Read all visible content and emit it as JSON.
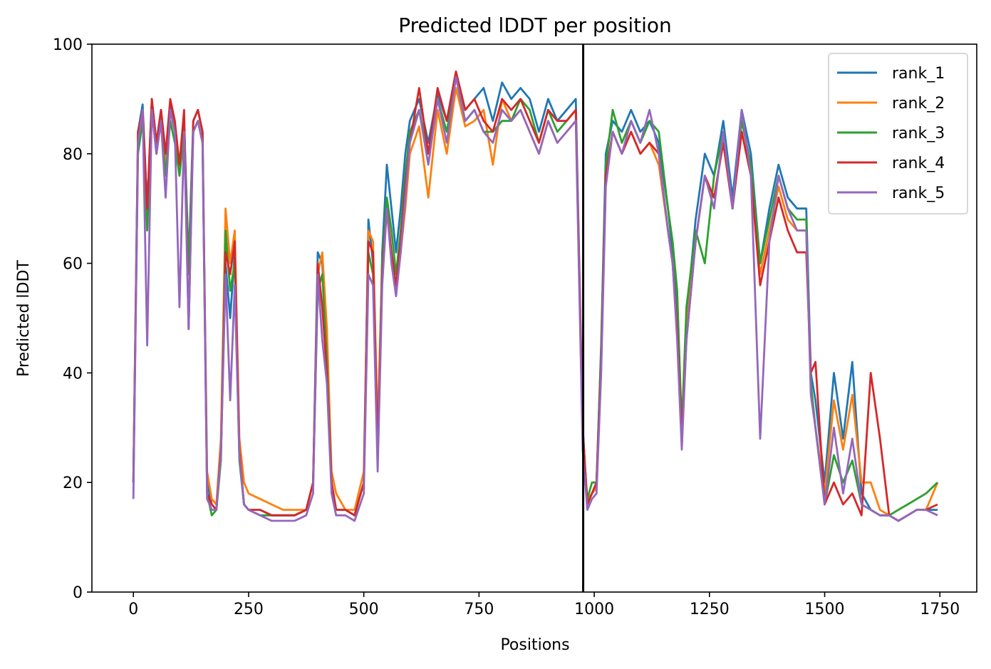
{
  "chart_data": {
    "type": "line",
    "title": "Predicted lDDT per position",
    "xlabel": "Positions",
    "ylabel": "Predicted lDDT",
    "xlim": [
      -90,
      1830
    ],
    "ylim": [
      0,
      100
    ],
    "xticks": [
      0,
      250,
      500,
      750,
      1000,
      1250,
      1500,
      1750
    ],
    "yticks": [
      0,
      20,
      40,
      60,
      80,
      100
    ],
    "grid": false,
    "legend_position": "top-right",
    "vline": 976,
    "series": [
      {
        "name": "rank_1",
        "color": "#1f77b4",
        "x": [
          0,
          10,
          20,
          30,
          40,
          50,
          60,
          70,
          80,
          90,
          100,
          110,
          120,
          130,
          140,
          150,
          160,
          170,
          180,
          190,
          200,
          210,
          220,
          230,
          240,
          250,
          275,
          300,
          325,
          350,
          375,
          390,
          400,
          410,
          420,
          430,
          440,
          460,
          480,
          500,
          510,
          520,
          530,
          540,
          550,
          560,
          570,
          580,
          590,
          600,
          620,
          640,
          660,
          680,
          700,
          720,
          740,
          760,
          780,
          800,
          820,
          840,
          860,
          880,
          900,
          920,
          940,
          960,
          975,
          985,
          995,
          1005,
          1015,
          1025,
          1040,
          1060,
          1080,
          1100,
          1120,
          1140,
          1160,
          1170,
          1180,
          1190,
          1200,
          1220,
          1240,
          1260,
          1280,
          1300,
          1320,
          1340,
          1360,
          1380,
          1400,
          1420,
          1440,
          1460,
          1470,
          1480,
          1500,
          1520,
          1540,
          1560,
          1580,
          1600,
          1620,
          1640,
          1660,
          1680,
          1700,
          1720,
          1745
        ],
        "y": [
          20,
          84,
          89,
          70,
          90,
          82,
          88,
          80,
          89,
          85,
          78,
          86,
          60,
          86,
          88,
          84,
          20,
          16,
          15,
          25,
          60,
          50,
          62,
          25,
          16,
          15,
          15,
          14,
          14,
          14,
          15,
          20,
          62,
          60,
          45,
          20,
          15,
          15,
          14,
          20,
          68,
          60,
          25,
          62,
          78,
          70,
          62,
          70,
          80,
          86,
          90,
          82,
          91,
          86,
          95,
          88,
          90,
          92,
          86,
          93,
          90,
          92,
          90,
          84,
          90,
          86,
          88,
          90,
          30,
          16,
          18,
          20,
          45,
          80,
          86,
          84,
          88,
          84,
          86,
          82,
          70,
          62,
          50,
          30,
          50,
          68,
          80,
          76,
          86,
          72,
          88,
          80,
          60,
          70,
          78,
          72,
          70,
          70,
          40,
          35,
          20,
          40,
          28,
          42,
          18,
          15,
          14,
          14,
          13,
          14,
          15,
          15,
          15
        ]
      },
      {
        "name": "rank_2",
        "color": "#ff7f0e",
        "x": [
          0,
          10,
          20,
          30,
          40,
          50,
          60,
          70,
          80,
          90,
          100,
          110,
          120,
          130,
          140,
          150,
          160,
          170,
          180,
          190,
          200,
          210,
          220,
          230,
          240,
          250,
          275,
          300,
          325,
          350,
          375,
          390,
          400,
          410,
          420,
          430,
          440,
          460,
          480,
          500,
          510,
          520,
          530,
          540,
          550,
          560,
          570,
          580,
          590,
          600,
          620,
          640,
          660,
          680,
          700,
          720,
          740,
          760,
          780,
          800,
          820,
          840,
          860,
          880,
          900,
          920,
          940,
          960,
          975,
          985,
          995,
          1005,
          1015,
          1025,
          1040,
          1060,
          1080,
          1100,
          1120,
          1140,
          1160,
          1170,
          1180,
          1190,
          1200,
          1220,
          1240,
          1260,
          1280,
          1300,
          1320,
          1340,
          1360,
          1380,
          1400,
          1420,
          1440,
          1460,
          1470,
          1480,
          1500,
          1520,
          1540,
          1560,
          1580,
          1600,
          1620,
          1640,
          1660,
          1680,
          1700,
          1720,
          1745
        ],
        "y": [
          20,
          82,
          88,
          68,
          88,
          80,
          87,
          78,
          88,
          84,
          76,
          84,
          58,
          84,
          86,
          82,
          22,
          17,
          16,
          28,
          70,
          60,
          66,
          28,
          20,
          18,
          17,
          16,
          15,
          15,
          15,
          20,
          58,
          62,
          48,
          22,
          18,
          15,
          15,
          22,
          66,
          64,
          30,
          60,
          70,
          62,
          55,
          62,
          70,
          80,
          85,
          72,
          88,
          80,
          92,
          85,
          86,
          88,
          78,
          90,
          86,
          88,
          84,
          80,
          86,
          82,
          84,
          86,
          28,
          17,
          18,
          19,
          42,
          76,
          84,
          80,
          84,
          80,
          82,
          78,
          66,
          60,
          48,
          28,
          48,
          64,
          76,
          72,
          82,
          70,
          84,
          76,
          58,
          66,
          74,
          68,
          66,
          66,
          38,
          30,
          18,
          35,
          26,
          36,
          20,
          20,
          15,
          14,
          13,
          14,
          15,
          15,
          20
        ]
      },
      {
        "name": "rank_3",
        "color": "#2ca02c",
        "x": [
          0,
          10,
          20,
          30,
          40,
          50,
          60,
          70,
          80,
          90,
          100,
          110,
          120,
          130,
          140,
          150,
          160,
          170,
          180,
          190,
          200,
          210,
          220,
          230,
          240,
          250,
          275,
          300,
          325,
          350,
          375,
          390,
          400,
          410,
          420,
          430,
          440,
          460,
          480,
          500,
          510,
          520,
          530,
          540,
          550,
          560,
          570,
          580,
          590,
          600,
          620,
          640,
          660,
          680,
          700,
          720,
          740,
          760,
          780,
          800,
          820,
          840,
          860,
          880,
          900,
          920,
          940,
          960,
          975,
          985,
          995,
          1005,
          1015,
          1025,
          1040,
          1060,
          1080,
          1100,
          1120,
          1140,
          1160,
          1170,
          1180,
          1190,
          1200,
          1220,
          1240,
          1260,
          1280,
          1300,
          1320,
          1340,
          1360,
          1380,
          1400,
          1420,
          1440,
          1460,
          1470,
          1480,
          1500,
          1520,
          1540,
          1560,
          1580,
          1600,
          1620,
          1640,
          1660,
          1680,
          1700,
          1720,
          1745
        ],
        "y": [
          20,
          80,
          86,
          66,
          88,
          80,
          86,
          76,
          86,
          82,
          76,
          84,
          58,
          84,
          86,
          82,
          18,
          14,
          15,
          24,
          66,
          55,
          60,
          24,
          16,
          15,
          14,
          14,
          14,
          14,
          15,
          20,
          55,
          58,
          42,
          20,
          15,
          15,
          14,
          20,
          62,
          58,
          24,
          60,
          72,
          66,
          58,
          66,
          76,
          84,
          88,
          80,
          90,
          84,
          94,
          86,
          88,
          84,
          84,
          86,
          86,
          90,
          88,
          82,
          88,
          84,
          86,
          88,
          28,
          17,
          20,
          20,
          44,
          78,
          88,
          82,
          86,
          82,
          86,
          84,
          70,
          64,
          55,
          30,
          52,
          66,
          60,
          76,
          84,
          70,
          86,
          78,
          60,
          68,
          76,
          70,
          68,
          68,
          38,
          30,
          16,
          25,
          20,
          24,
          16,
          15,
          14,
          14,
          15,
          16,
          17,
          18,
          20
        ]
      },
      {
        "name": "rank_4",
        "color": "#d62728",
        "x": [
          0,
          10,
          20,
          30,
          40,
          50,
          60,
          70,
          80,
          90,
          100,
          110,
          120,
          130,
          140,
          150,
          160,
          170,
          180,
          190,
          200,
          210,
          220,
          230,
          240,
          250,
          275,
          300,
          325,
          350,
          375,
          390,
          400,
          410,
          420,
          430,
          440,
          460,
          480,
          500,
          510,
          520,
          530,
          540,
          550,
          560,
          570,
          580,
          590,
          600,
          620,
          640,
          660,
          680,
          700,
          720,
          740,
          760,
          780,
          800,
          820,
          840,
          860,
          880,
          900,
          920,
          940,
          960,
          975,
          985,
          995,
          1005,
          1015,
          1025,
          1040,
          1060,
          1080,
          1100,
          1120,
          1140,
          1160,
          1170,
          1180,
          1190,
          1200,
          1220,
          1240,
          1260,
          1280,
          1300,
          1320,
          1340,
          1360,
          1380,
          1400,
          1420,
          1440,
          1460,
          1470,
          1480,
          1500,
          1520,
          1540,
          1560,
          1580,
          1600,
          1620,
          1640,
          1660,
          1680,
          1700,
          1720,
          1745
        ],
        "y": [
          20,
          84,
          88,
          70,
          90,
          82,
          88,
          80,
          90,
          86,
          78,
          88,
          48,
          86,
          88,
          84,
          18,
          16,
          15,
          26,
          62,
          58,
          64,
          26,
          16,
          15,
          15,
          14,
          14,
          14,
          15,
          20,
          60,
          52,
          40,
          20,
          15,
          15,
          14,
          20,
          64,
          62,
          26,
          58,
          70,
          62,
          56,
          64,
          74,
          82,
          92,
          80,
          92,
          86,
          95,
          88,
          90,
          86,
          84,
          90,
          88,
          90,
          86,
          82,
          88,
          86,
          86,
          88,
          30,
          16,
          18,
          20,
          42,
          76,
          84,
          80,
          84,
          80,
          82,
          80,
          66,
          60,
          48,
          28,
          46,
          64,
          76,
          72,
          82,
          70,
          84,
          76,
          56,
          64,
          72,
          66,
          62,
          62,
          40,
          42,
          16,
          20,
          16,
          18,
          14,
          40,
          28,
          14,
          13,
          14,
          15,
          15,
          16
        ]
      },
      {
        "name": "rank_5",
        "color": "#9467bd",
        "x": [
          0,
          10,
          20,
          30,
          40,
          50,
          60,
          70,
          80,
          90,
          100,
          110,
          120,
          130,
          140,
          150,
          160,
          170,
          180,
          190,
          200,
          210,
          220,
          230,
          240,
          250,
          275,
          300,
          325,
          350,
          375,
          390,
          400,
          410,
          420,
          430,
          440,
          460,
          480,
          500,
          510,
          520,
          530,
          540,
          550,
          560,
          570,
          580,
          590,
          600,
          620,
          640,
          660,
          680,
          700,
          720,
          740,
          760,
          780,
          800,
          820,
          840,
          860,
          880,
          900,
          920,
          940,
          960,
          975,
          985,
          995,
          1005,
          1015,
          1025,
          1040,
          1060,
          1080,
          1100,
          1120,
          1140,
          1160,
          1170,
          1180,
          1190,
          1200,
          1220,
          1240,
          1260,
          1280,
          1300,
          1320,
          1340,
          1360,
          1380,
          1400,
          1420,
          1440,
          1460,
          1470,
          1480,
          1500,
          1520,
          1540,
          1560,
          1580,
          1600,
          1620,
          1640,
          1660,
          1680,
          1700,
          1720,
          1745
        ],
        "y": [
          17,
          82,
          88,
          45,
          88,
          80,
          86,
          72,
          88,
          84,
          52,
          84,
          48,
          84,
          86,
          82,
          17,
          15,
          15,
          25,
          58,
          35,
          56,
          25,
          16,
          15,
          14,
          13,
          13,
          13,
          14,
          18,
          58,
          46,
          38,
          18,
          14,
          14,
          13,
          18,
          58,
          56,
          22,
          56,
          70,
          60,
          54,
          62,
          72,
          82,
          88,
          78,
          90,
          82,
          94,
          86,
          88,
          84,
          82,
          88,
          86,
          88,
          84,
          80,
          86,
          82,
          84,
          86,
          26,
          15,
          17,
          18,
          40,
          74,
          84,
          80,
          86,
          82,
          88,
          80,
          66,
          60,
          46,
          26,
          46,
          64,
          76,
          70,
          84,
          70,
          88,
          76,
          28,
          64,
          76,
          70,
          66,
          66,
          36,
          30,
          16,
          30,
          18,
          28,
          16,
          15,
          14,
          14,
          13,
          14,
          15,
          15,
          14
        ]
      }
    ]
  }
}
